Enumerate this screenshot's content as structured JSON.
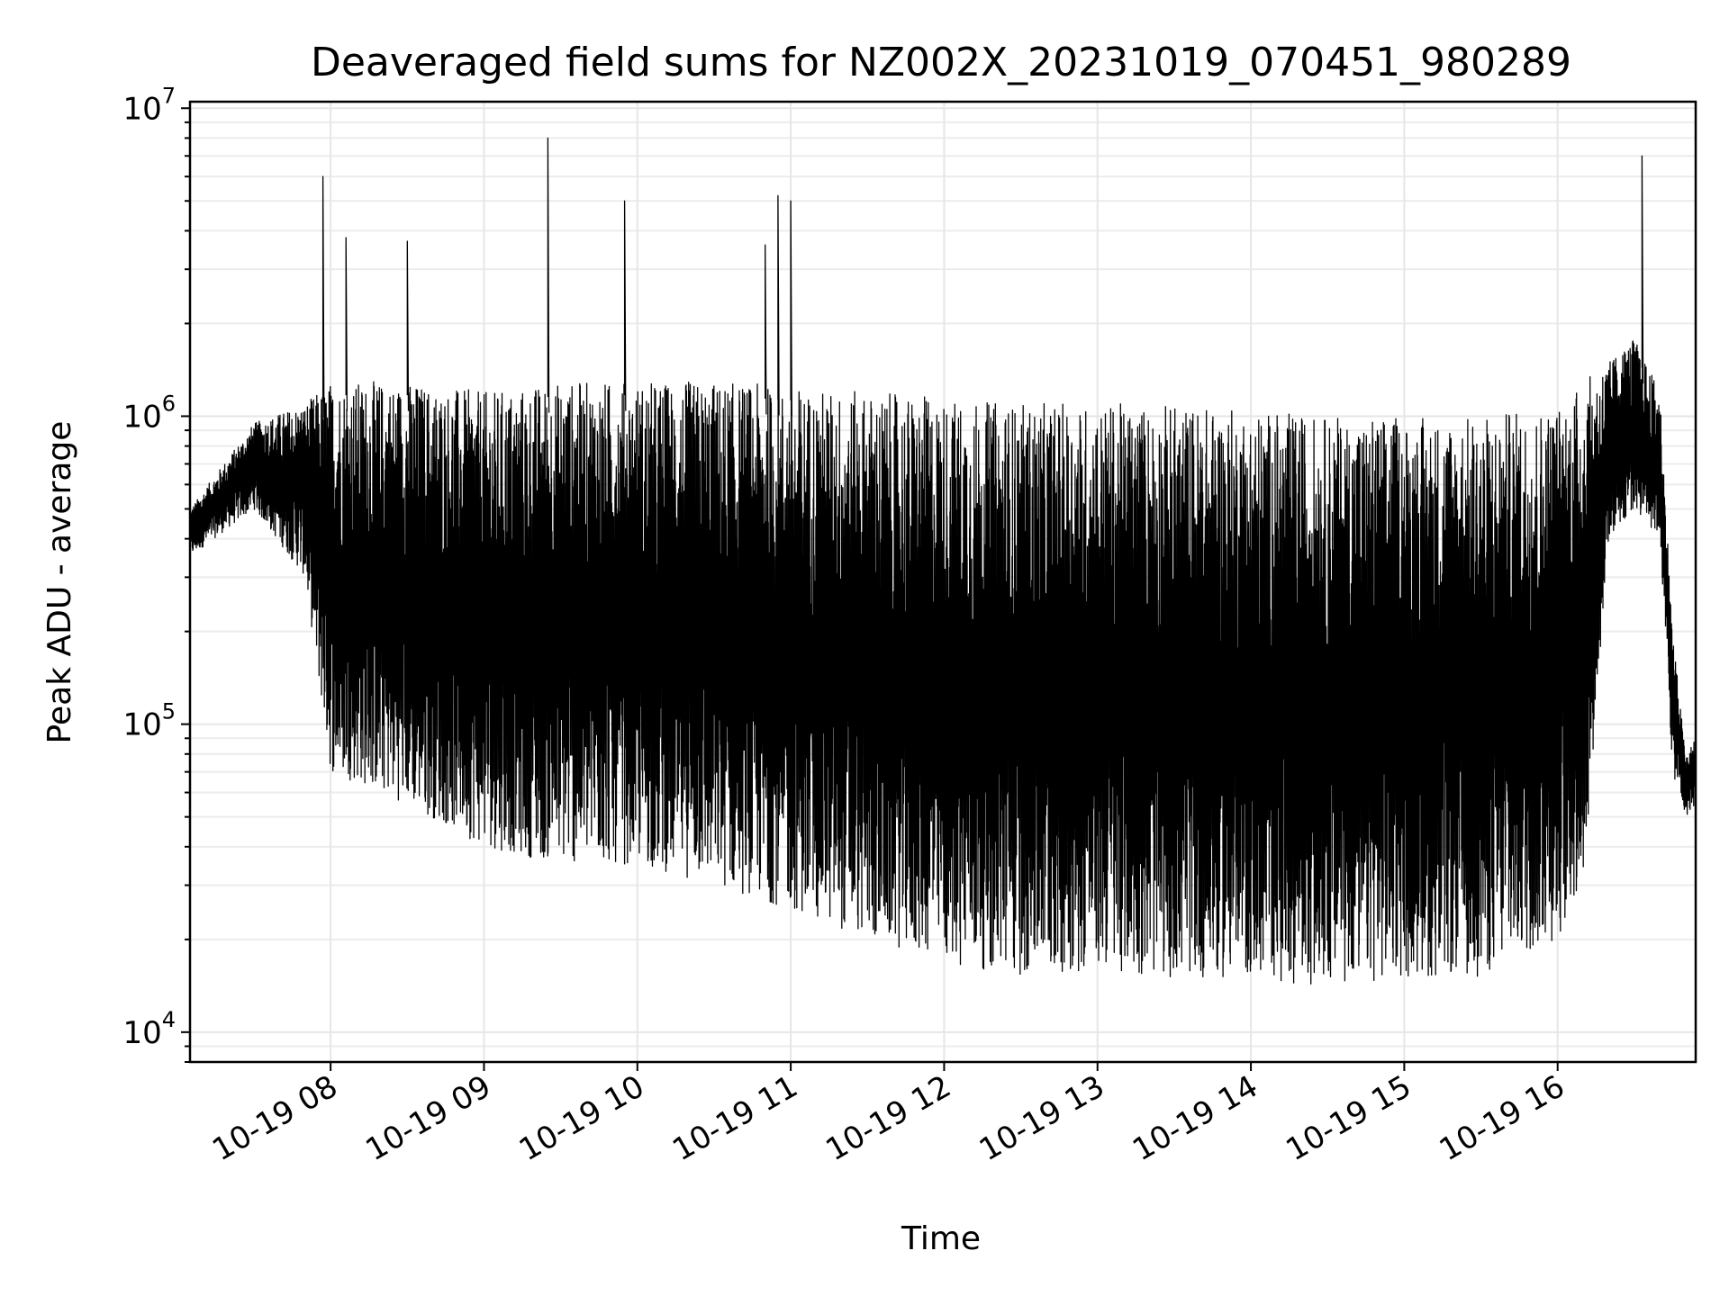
{
  "chart_data": {
    "type": "line",
    "title": "Deaveraged field sums for NZ002X_20231019_070451_980289",
    "xlabel": "Time",
    "ylabel": "Peak ADU - average",
    "yscale": "log",
    "ylim": [
      8000,
      10500000
    ],
    "xlim": [
      "10-19 07:05",
      "10-19 16:54"
    ],
    "x_ticks": [
      {
        "t": "10-19 08:00",
        "label": "10-19 08"
      },
      {
        "t": "10-19 09:00",
        "label": "10-19 09"
      },
      {
        "t": "10-19 10:00",
        "label": "10-19 10"
      },
      {
        "t": "10-19 11:00",
        "label": "10-19 11"
      },
      {
        "t": "10-19 12:00",
        "label": "10-19 12"
      },
      {
        "t": "10-19 13:00",
        "label": "10-19 13"
      },
      {
        "t": "10-19 14:00",
        "label": "10-19 14"
      },
      {
        "t": "10-19 15:00",
        "label": "10-19 15"
      },
      {
        "t": "10-19 16:00",
        "label": "10-19 16"
      }
    ],
    "y_ticks": [
      {
        "value": 10000,
        "base": "10",
        "exp": "4"
      },
      {
        "value": 100000,
        "base": "10",
        "exp": "5"
      },
      {
        "value": 1000000,
        "base": "10",
        "exp": "6"
      },
      {
        "value": 10000000,
        "base": "10",
        "exp": "7"
      }
    ],
    "grid": true,
    "series": [
      {
        "color": "#000000",
        "x": [
          "10-19 07:05",
          "10-19 07:10",
          "10-19 07:15",
          "10-19 07:20",
          "10-19 07:25",
          "10-19 07:30",
          "10-19 07:35",
          "10-19 07:40",
          "10-19 07:45",
          "10-19 07:50",
          "10-19 07:55",
          "10-19 07:57",
          "10-19 08:00",
          "10-19 08:06",
          "10-19 08:10",
          "10-19 08:20",
          "10-19 08:30",
          "10-19 08:40",
          "10-19 08:50",
          "10-19 09:00",
          "10-19 09:10",
          "10-19 09:20",
          "10-19 09:25",
          "10-19 09:30",
          "10-19 09:40",
          "10-19 09:50",
          "10-19 09:55",
          "10-19 10:00",
          "10-19 10:10",
          "10-19 10:20",
          "10-19 10:30",
          "10-19 10:40",
          "10-19 10:50",
          "10-19 10:55",
          "10-19 11:00",
          "10-19 11:20",
          "10-19 11:40",
          "10-19 12:00",
          "10-19 12:20",
          "10-19 12:40",
          "10-19 13:00",
          "10-19 13:20",
          "10-19 13:40",
          "10-19 14:00",
          "10-19 14:20",
          "10-19 14:40",
          "10-19 15:00",
          "10-19 15:20",
          "10-19 15:40",
          "10-19 16:00",
          "10-19 16:10",
          "10-19 16:20",
          "10-19 16:28",
          "10-19 16:33",
          "10-19 16:38",
          "10-19 16:42",
          "10-19 16:46",
          "10-19 16:50",
          "10-19 16:54"
        ],
        "y": [
          350000,
          520000,
          620000,
          720000,
          800000,
          850000,
          900000,
          800000,
          600000,
          300000,
          200000,
          6000000,
          150000,
          3800000,
          90000,
          300000,
          3700000,
          150000,
          70000,
          55000,
          50000,
          60000,
          8000000,
          60000,
          50000,
          55000,
          5000000,
          55000,
          45000,
          50000,
          40000,
          60000,
          3600000,
          5200000,
          5000000,
          60000,
          50000,
          45000,
          35000,
          30000,
          40000,
          30000,
          35000,
          30000,
          30000,
          35000,
          40000,
          30000,
          30000,
          100000,
          200000,
          1500000,
          2000000,
          7000000,
          1000000,
          300000,
          60000,
          70000,
          60000
        ]
      }
    ],
    "envelope": {
      "x": [
        "10-19 07:05",
        "10-19 07:30",
        "10-19 07:50",
        "10-19 08:00",
        "10-19 08:30",
        "10-19 09:00",
        "10-19 09:30",
        "10-19 10:00",
        "10-19 10:30",
        "10-19 11:00",
        "10-19 11:30",
        "10-19 12:00",
        "10-19 12:30",
        "10-19 13:00",
        "10-19 13:30",
        "10-19 14:00",
        "10-19 14:30",
        "10-19 15:00",
        "10-19 15:30",
        "10-19 16:00",
        "10-19 16:10",
        "10-19 16:20",
        "10-19 16:30",
        "10-19 16:40",
        "10-19 16:45",
        "10-19 16:50",
        "10-19 16:54"
      ],
      "min": [
        350000,
        500000,
        300000,
        70000,
        55000,
        40000,
        35000,
        35000,
        30000,
        25000,
        20000,
        17000,
        15000,
        16000,
        15000,
        15000,
        14000,
        15000,
        15000,
        20000,
        30000,
        400000,
        500000,
        400000,
        70000,
        50000,
        55000
      ],
      "max": [
        500000,
        950000,
        1100000,
        1300000,
        1300000,
        1200000,
        1300000,
        1300000,
        1300000,
        1250000,
        1200000,
        1150000,
        1100000,
        1100000,
        1100000,
        1050000,
        1000000,
        1000000,
        1000000,
        1100000,
        1300000,
        1500000,
        1800000,
        1200000,
        200000,
        80000,
        90000
      ]
    }
  }
}
